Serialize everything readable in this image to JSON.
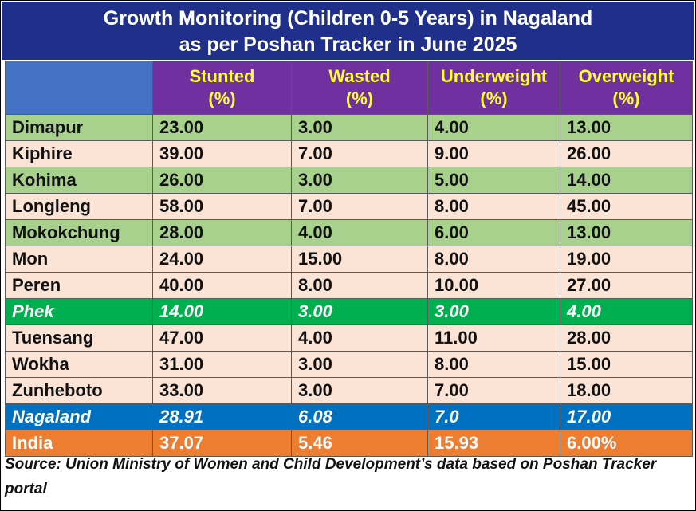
{
  "title_line1": "Growth Monitoring (Children 0-5 Years) in Nagaland",
  "title_line2": "as per Poshan Tracker in June 2025",
  "source": "Source: Union Ministry of Women and Child Development’s data based on Poshan Tracker portal",
  "colors": {
    "title_bg": "#1f2f8a",
    "header_bg": "#7030a0",
    "header_text": "#ffff33",
    "corner_bg": "#4472c4",
    "row_green": "#a9d18e",
    "row_peach": "#fbe3d6",
    "highlight": "#00b050",
    "state": "#0070c0",
    "national": "#ed7d31"
  },
  "chart_data": {
    "type": "table",
    "columns": [
      {
        "name": "Stunted",
        "unit": "(%)"
      },
      {
        "name": "Wasted",
        "unit": "(%)"
      },
      {
        "name": "Underweight",
        "unit": "(%)"
      },
      {
        "name": "Overweight",
        "unit": "(%)"
      }
    ],
    "rows": [
      {
        "district": "Dimapur",
        "values": [
          "23.00",
          "3.00",
          "4.00",
          "13.00"
        ],
        "style": "green"
      },
      {
        "district": "Kiphire",
        "values": [
          "39.00",
          "7.00",
          "9.00",
          "26.00"
        ],
        "style": "peach"
      },
      {
        "district": "Kohima",
        "values": [
          "26.00",
          "3.00",
          "5.00",
          "14.00"
        ],
        "style": "green"
      },
      {
        "district": "Longleng",
        "values": [
          "58.00",
          "7.00",
          "8.00",
          "45.00"
        ],
        "style": "peach"
      },
      {
        "district": "Mokokchung",
        "values": [
          "28.00",
          "4.00",
          "6.00",
          "13.00"
        ],
        "style": "green"
      },
      {
        "district": "Mon",
        "values": [
          "24.00",
          "15.00",
          "8.00",
          "19.00"
        ],
        "style": "peach"
      },
      {
        "district": "Peren",
        "values": [
          "40.00",
          "8.00",
          "10.00",
          "27.00"
        ],
        "style": "peach"
      },
      {
        "district": "Phek",
        "values": [
          "14.00",
          "3.00",
          "3.00",
          "4.00"
        ],
        "style": "highlight"
      },
      {
        "district": "Tuensang",
        "values": [
          "47.00",
          "4.00",
          "11.00",
          "28.00"
        ],
        "style": "peach"
      },
      {
        "district": "Wokha",
        "values": [
          "31.00",
          "3.00",
          "8.00",
          "15.00"
        ],
        "style": "peach"
      },
      {
        "district": "Zunheboto",
        "values": [
          "33.00",
          "3.00",
          "7.00",
          "18.00"
        ],
        "style": "peach"
      },
      {
        "district": "Nagaland",
        "values": [
          "28.91",
          "6.08",
          "7.0",
          "17.00"
        ],
        "style": "state"
      },
      {
        "district": "India",
        "values": [
          "37.07",
          "5.46",
          "15.93",
          "6.00%"
        ],
        "style": "national"
      }
    ]
  }
}
